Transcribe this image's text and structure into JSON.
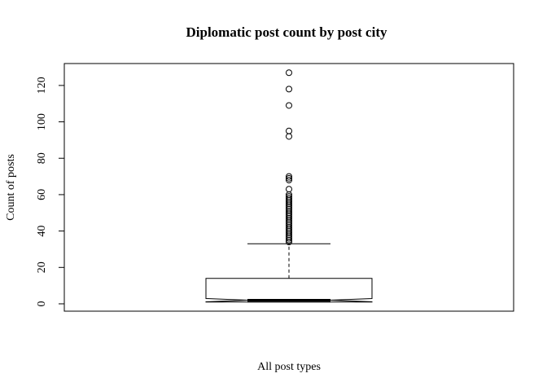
{
  "chart_data": {
    "type": "box",
    "title": "Diplomatic post count by post city",
    "x_label": "All post types",
    "y_label": "Count of posts",
    "whisker_low": 1,
    "q1": 1,
    "notch_low": 1.1,
    "median": 2,
    "notch_high": 2.9,
    "q3": 14,
    "whisker_high": 33,
    "outliers": [
      127,
      118,
      109,
      95,
      92,
      70,
      69,
      68,
      63,
      60,
      59,
      58,
      57,
      56,
      55,
      54,
      53,
      52,
      51,
      50,
      49,
      48,
      47,
      46,
      45,
      44,
      43,
      42,
      41,
      40,
      39,
      38,
      37,
      36,
      35,
      34
    ],
    "color": "#000000",
    "ylim": [
      -4.04,
      132.04
    ],
    "yticks": [
      0,
      20,
      40,
      60,
      80,
      100,
      120
    ]
  }
}
